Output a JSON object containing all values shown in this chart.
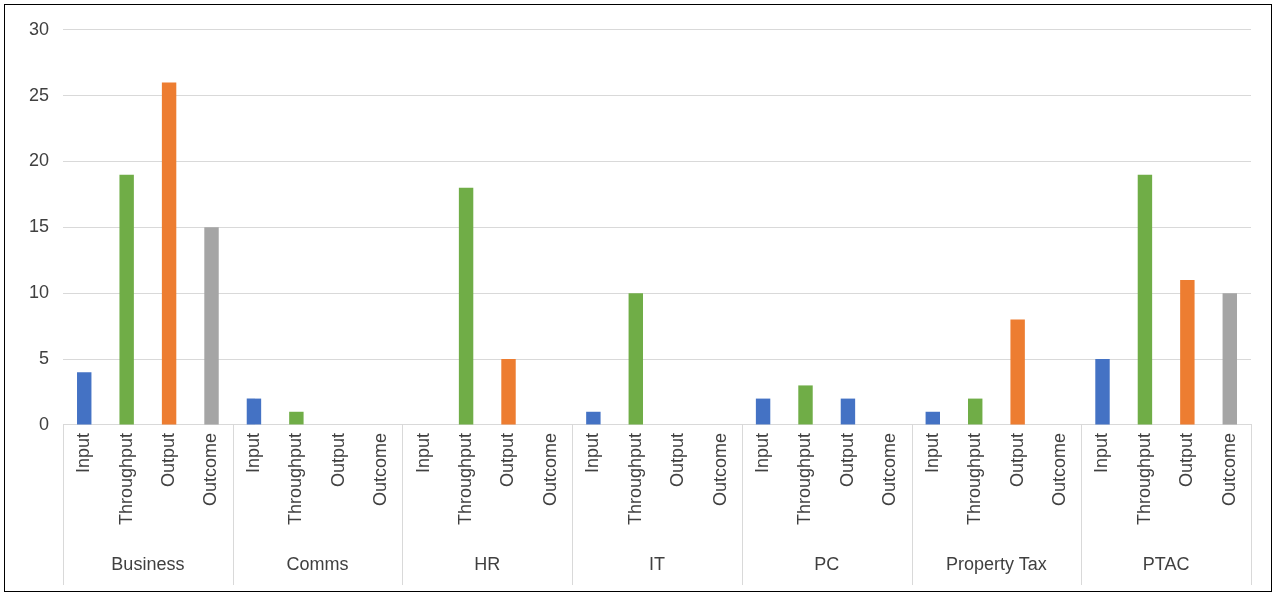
{
  "chart_data": {
    "type": "bar",
    "categories": [
      "Input",
      "Throughput",
      "Output",
      "Outcome",
      "Input",
      "Throughput",
      "Output",
      "Outcome",
      "Input",
      "Throughput",
      "Output",
      "Outcome",
      "Input",
      "Throughput",
      "Output",
      "Outcome",
      "Input",
      "Throughput",
      "Output",
      "Outcome",
      "Input",
      "Throughput",
      "Output",
      "Outcome",
      "Input",
      "Throughput",
      "Output",
      "Outcome"
    ],
    "values": [
      4,
      19,
      26,
      15,
      2,
      1,
      0,
      0,
      0,
      18,
      5,
      0,
      1,
      10,
      0,
      0,
      2,
      3,
      2,
      0,
      1,
      2,
      8,
      0,
      5,
      19,
      11,
      10
    ],
    "colors": [
      "#4472c4",
      "#70ad47",
      "#ed7d31",
      "#a5a5a5",
      "#4472c4",
      "#70ad47",
      "#ed7d31",
      "#a5a5a5",
      "#4472c4",
      "#70ad47",
      "#ed7d31",
      "#a5a5a5",
      "#4472c4",
      "#70ad47",
      "#ed7d31",
      "#a5a5a5",
      "#4472c4",
      "#70ad47",
      "#4472c4",
      "#a5a5a5",
      "#4472c4",
      "#70ad47",
      "#ed7d31",
      "#a5a5a5",
      "#4472c4",
      "#70ad47",
      "#ed7d31",
      "#a5a5a5"
    ],
    "ylim": [
      0,
      30
    ],
    "yticks": [
      0,
      5,
      10,
      15,
      20,
      25,
      30
    ],
    "grid": "y",
    "annotations": [
      "Business",
      "Comms",
      "HR",
      "IT",
      "PC",
      "Property Tax",
      "PTAC"
    ]
  }
}
